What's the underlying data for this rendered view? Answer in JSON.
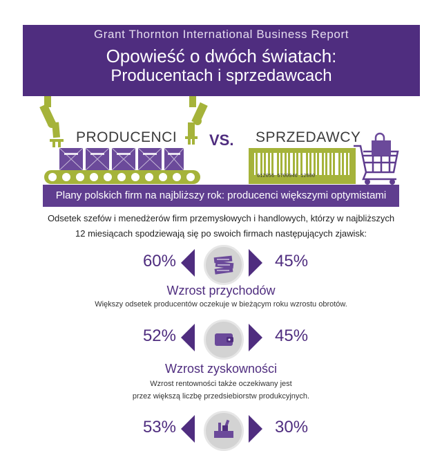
{
  "header": {
    "brand": "Grant Thornton International Business Report",
    "title_line1": "Opowieść o dwóch światach:",
    "title_line2": "Producentach i sprzedawcach"
  },
  "illustration": {
    "producers_label": "PRODUCENCI",
    "vs_label": "VS.",
    "sellers_label": "SPRZEDAWCY",
    "barcode_number": "612056 6700046 12000"
  },
  "banner": {
    "text": "Plany polskich firm na najbliższy rok: producenci większymi optymistami"
  },
  "intro": {
    "line1": "Odsetek szefów i menedżerów firm przemysłowych i handlowych, którzy w najbliższych",
    "line2": "12 miesiącach spodziewają się po swoich firmach następujących zjawisk:"
  },
  "metrics": [
    {
      "producers_pct": "60%",
      "sellers_pct": "45%",
      "icon": "money-stack-icon",
      "title": "Wzrost przychodów",
      "desc_line1": "Większy odsetek producentów oczekuje w bieżącym roku wzrostu obrotów.",
      "desc_line2": ""
    },
    {
      "producers_pct": "52%",
      "sellers_pct": "45%",
      "icon": "wallet-icon",
      "title": "Wzrost zyskowności",
      "desc_line1": "Wzrost rentowności także oczekiwany jest",
      "desc_line2": "przez większą liczbę przedsiebiorstw produkcyjnych."
    },
    {
      "producers_pct": "53%",
      "sellers_pct": "30%",
      "icon": "machinery-icon",
      "title": "",
      "desc_line1": "",
      "desc_line2": ""
    }
  ],
  "colors": {
    "purple": "#4f2d7f",
    "banner_purple": "#5f3d8f",
    "green": "#a5b33a",
    "grey_circle": "#d3d3d3"
  }
}
